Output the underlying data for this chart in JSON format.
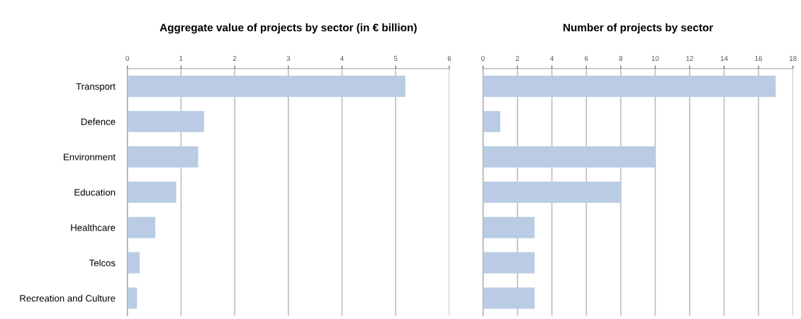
{
  "chart_data": [
    {
      "type": "bar",
      "orientation": "horizontal",
      "title": "Aggregate value of projects by sector (in € billion)",
      "categories": [
        "Transport",
        "Defence",
        "Environment",
        "Education",
        "Healthcare",
        "Telcos",
        "Recreation and Culture"
      ],
      "values": [
        5.18,
        1.43,
        1.32,
        0.91,
        0.52,
        0.23,
        0.18
      ],
      "color": "#b9cce4",
      "xlim": [
        0,
        6
      ],
      "xticks": [
        0,
        1,
        2,
        3,
        4,
        5,
        6
      ],
      "grid": "x"
    },
    {
      "type": "bar",
      "orientation": "horizontal",
      "title": "Number of projects by sector",
      "categories": [
        null,
        null,
        null,
        null,
        null,
        null,
        null
      ],
      "values": [
        17,
        1,
        10,
        8,
        3,
        3,
        3
      ],
      "color": "#b9cce4",
      "xlim": [
        0,
        18
      ],
      "xticks": [
        0,
        2,
        4,
        6,
        8,
        10,
        12,
        14,
        16,
        18
      ],
      "grid": "x",
      "tick_labels": "x"
    }
  ]
}
